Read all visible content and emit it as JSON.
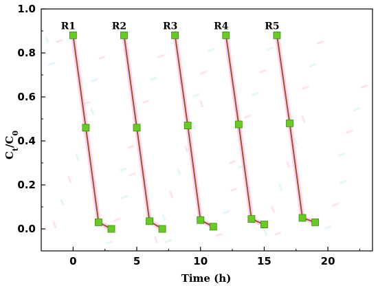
{
  "chart_data": {
    "type": "line",
    "xlabel": "Time (h)",
    "ylabel_main": "C",
    "ylabel_sub1": "t",
    "ylabel_slash": "/C",
    "ylabel_sub2": "0",
    "xlim": [
      -2.5,
      23.5
    ],
    "ylim": [
      -0.1,
      1.0
    ],
    "xticks": [
      0,
      5,
      10,
      15,
      20
    ],
    "yticks": [
      0.0,
      0.2,
      0.4,
      0.6,
      0.8,
      1.0
    ],
    "ytick_labels": [
      "0.0",
      "0.2",
      "0.4",
      "0.6",
      "0.8",
      "1.0"
    ],
    "xtick_labels": [
      "0",
      "5",
      "10",
      "15",
      "20"
    ],
    "grid": false,
    "legend": "none",
    "colors": {
      "line": "#a0522d",
      "marker": "#66cc22",
      "marker_edge": "#3d8a10",
      "halo": "#ffc8e8"
    },
    "series": [
      {
        "label": "R1",
        "x": [
          0,
          1,
          2,
          3
        ],
        "y": [
          0.88,
          0.46,
          0.03,
          0.0
        ]
      },
      {
        "label": "R2",
        "x": [
          4,
          5,
          6,
          7
        ],
        "y": [
          0.88,
          0.46,
          0.035,
          0.0
        ]
      },
      {
        "label": "R3",
        "x": [
          8,
          9,
          10,
          11
        ],
        "y": [
          0.88,
          0.47,
          0.04,
          0.01
        ]
      },
      {
        "label": "R4",
        "x": [
          12,
          13,
          14,
          15
        ],
        "y": [
          0.88,
          0.475,
          0.045,
          0.02
        ]
      },
      {
        "label": "R5",
        "x": [
          16,
          17,
          18,
          19
        ],
        "y": [
          0.88,
          0.48,
          0.05,
          0.03
        ]
      }
    ]
  }
}
